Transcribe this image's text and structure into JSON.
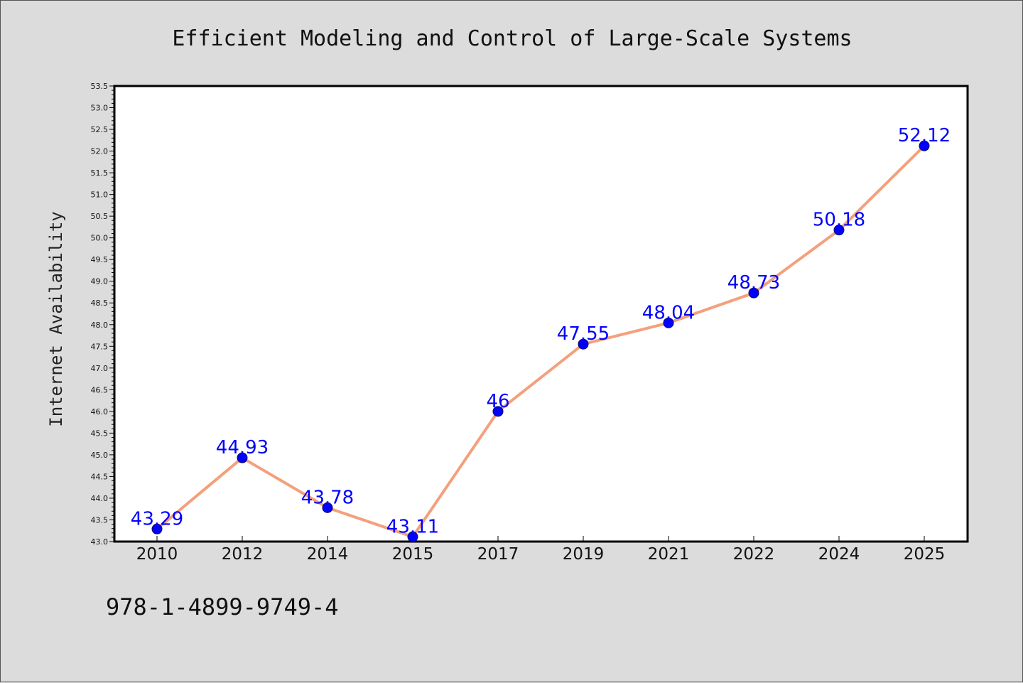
{
  "chart_data": {
    "type": "line",
    "title": "Efficient Modeling and Control of Large-Scale Systems",
    "xlabel": "",
    "ylabel": "Internet Availability",
    "categories": [
      "2010",
      "2012",
      "2014",
      "2015",
      "2017",
      "2019",
      "2021",
      "2022",
      "2024",
      "2025"
    ],
    "series": [
      {
        "values": [
          43.29,
          44.93,
          43.78,
          43.11,
          46,
          47.55,
          48.04,
          48.73,
          50.18,
          52.12
        ],
        "data_labels": [
          "43.29",
          "44.93",
          "43.78",
          "43.11",
          "46",
          "47.55",
          "48.04",
          "48.73",
          "50.18",
          "52.12"
        ]
      }
    ],
    "ylim": [
      43.0,
      53.5
    ],
    "yticks": [
      "43.0",
      "43.5",
      "44.0",
      "44.5",
      "45.0",
      "45.5",
      "46.0",
      "46.5",
      "47.0",
      "47.5",
      "48.0",
      "48.5",
      "49.0",
      "49.5",
      "50.0",
      "50.5",
      "51.0",
      "51.5",
      "52.0",
      "52.5",
      "53.0",
      "53.5"
    ],
    "grid": false,
    "legend": "none",
    "colors": {
      "line": "#f4a07c",
      "marker": "#0000ff",
      "marker_edge": "#0a0a66",
      "data_label": "#0000ff",
      "figure_background": "#dcdcdc",
      "plot_background": "#ffffff"
    }
  },
  "footnote": "978-1-4899-9749-4"
}
